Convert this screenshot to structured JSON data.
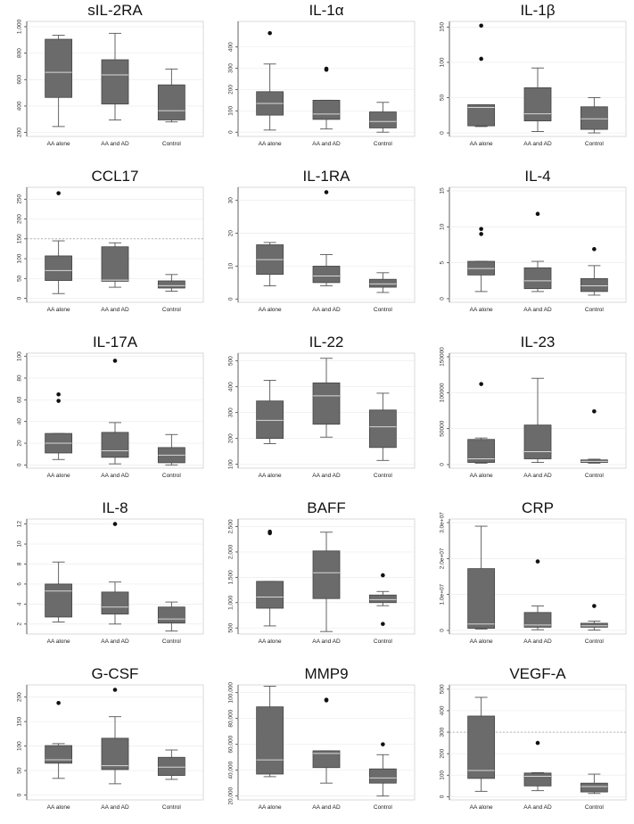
{
  "chart_data": [
    {
      "type": "box",
      "title": "sIL-2RA",
      "categories": [
        "AA alone",
        "AA and AD",
        "Control"
      ],
      "yticks": [
        "200",
        "400",
        "600",
        "800",
        "1,000"
      ],
      "ylim": [
        170,
        1040
      ],
      "boxes": [
        {
          "min": 245,
          "q1": 465,
          "median": 655,
          "q3": 905,
          "max": 935,
          "outliers": []
        },
        {
          "min": 295,
          "q1": 415,
          "median": 635,
          "q3": 750,
          "max": 950,
          "outliers": []
        },
        {
          "min": 280,
          "q1": 295,
          "median": 365,
          "q3": 560,
          "max": 680,
          "outliers": []
        }
      ],
      "refline": null
    },
    {
      "type": "box",
      "title": "IL-1α",
      "categories": [
        "AA alone",
        "AA and AD",
        "Control"
      ],
      "yticks": [
        "0",
        "100",
        "200",
        "300",
        "400"
      ],
      "ylim": [
        -20,
        520
      ],
      "boxes": [
        {
          "min": 10,
          "q1": 80,
          "median": 135,
          "q3": 190,
          "max": 320,
          "outliers": [
            465
          ]
        },
        {
          "min": 15,
          "q1": 60,
          "median": 85,
          "q3": 150,
          "max": 150,
          "outliers": [
            293,
            298
          ]
        },
        {
          "min": 0,
          "q1": 20,
          "median": 50,
          "q3": 95,
          "max": 140,
          "outliers": []
        }
      ],
      "refline": null
    },
    {
      "type": "box",
      "title": "IL-1β",
      "categories": [
        "AA alone",
        "AA and AD",
        "Control"
      ],
      "yticks": [
        "0",
        "50",
        "100",
        "150"
      ],
      "ylim": [
        -5,
        158
      ],
      "boxes": [
        {
          "min": 9,
          "q1": 10,
          "median": 36,
          "q3": 40,
          "max": 40,
          "outliers": [
            105,
            152
          ]
        },
        {
          "min": 2,
          "q1": 17,
          "median": 27,
          "q3": 64,
          "max": 92,
          "outliers": []
        },
        {
          "min": 0,
          "q1": 5,
          "median": 20,
          "q3": 37,
          "max": 50,
          "outliers": []
        }
      ],
      "refline": null
    },
    {
      "type": "box",
      "title": "CCL17",
      "categories": [
        "AA alone",
        "AA and AD",
        "Control"
      ],
      "yticks": [
        "0",
        "50",
        "100",
        "150",
        "200",
        "250"
      ],
      "ylim": [
        -10,
        280
      ],
      "boxes": [
        {
          "min": 12,
          "q1": 45,
          "median": 70,
          "q3": 107,
          "max": 145,
          "outliers": [
            265
          ]
        },
        {
          "min": 28,
          "q1": 43,
          "median": 46,
          "q3": 130,
          "max": 140,
          "outliers": []
        },
        {
          "min": 18,
          "q1": 26,
          "median": 32,
          "q3": 44,
          "max": 60,
          "outliers": []
        }
      ],
      "refline": 150
    },
    {
      "type": "box",
      "title": "IL-1RA",
      "categories": [
        "AA alone",
        "AA and AD",
        "Control"
      ],
      "yticks": [
        "0",
        "10",
        "20",
        "30"
      ],
      "ylim": [
        -1,
        34
      ],
      "boxes": [
        {
          "min": 4,
          "q1": 7.5,
          "median": 12,
          "q3": 16.5,
          "max": 17.2,
          "outliers": []
        },
        {
          "min": 4,
          "q1": 5,
          "median": 7,
          "q3": 10,
          "max": 13.5,
          "outliers": [
            32.5
          ]
        },
        {
          "min": 2,
          "q1": 3.6,
          "median": 4.6,
          "q3": 6,
          "max": 8,
          "outliers": []
        }
      ],
      "refline": null
    },
    {
      "type": "box",
      "title": "IL-4",
      "categories": [
        "AA alone",
        "AA and AD",
        "Control"
      ],
      "yticks": [
        "0",
        "5",
        "10",
        "15"
      ],
      "ylim": [
        -0.5,
        15.5
      ],
      "boxes": [
        {
          "min": 1,
          "q1": 3.3,
          "median": 4.2,
          "q3": 5.2,
          "max": 5.2,
          "outliers": [
            9,
            9.7
          ]
        },
        {
          "min": 1,
          "q1": 1.4,
          "median": 2.5,
          "q3": 4.3,
          "max": 5.2,
          "outliers": [
            11.8
          ]
        },
        {
          "min": 0.5,
          "q1": 1,
          "median": 1.8,
          "q3": 2.8,
          "max": 4.6,
          "outliers": [
            6.9
          ]
        }
      ],
      "refline": null
    },
    {
      "type": "box",
      "title": "IL-17A",
      "categories": [
        "AA alone",
        "AA and AD",
        "Control"
      ],
      "yticks": [
        "0",
        "20",
        "40",
        "60",
        "80",
        "100"
      ],
      "ylim": [
        -3,
        103
      ],
      "boxes": [
        {
          "min": 5,
          "q1": 11,
          "median": 20,
          "q3": 29,
          "max": 29,
          "outliers": [
            59,
            65
          ]
        },
        {
          "min": 1,
          "q1": 7,
          "median": 13,
          "q3": 30,
          "max": 39,
          "outliers": [
            96
          ]
        },
        {
          "min": 0,
          "q1": 2,
          "median": 9,
          "q3": 16,
          "max": 28,
          "outliers": []
        }
      ],
      "refline": null
    },
    {
      "type": "box",
      "title": "IL-22",
      "categories": [
        "AA alone",
        "AA and AD",
        "Control"
      ],
      "yticks": [
        "100",
        "200",
        "300",
        "400",
        "500"
      ],
      "ylim": [
        85,
        530
      ],
      "boxes": [
        {
          "min": 180,
          "q1": 200,
          "median": 270,
          "q3": 345,
          "max": 425,
          "outliers": []
        },
        {
          "min": 205,
          "q1": 255,
          "median": 365,
          "q3": 415,
          "max": 510,
          "outliers": []
        },
        {
          "min": 115,
          "q1": 165,
          "median": 245,
          "q3": 310,
          "max": 375,
          "outliers": []
        }
      ],
      "refline": null
    },
    {
      "type": "box",
      "title": "IL-23",
      "categories": [
        "AA alone",
        "AA and AD",
        "Control"
      ],
      "yticks": [
        "0",
        "50000",
        "100000",
        "150000"
      ],
      "ylim": [
        -5000,
        155000
      ],
      "boxes": [
        {
          "min": 2000,
          "q1": 3000,
          "median": 8000,
          "q3": 35000,
          "max": 37000,
          "outliers": [
            112000
          ]
        },
        {
          "min": 3000,
          "q1": 8000,
          "median": 18000,
          "q3": 55000,
          "max": 120000,
          "outliers": []
        },
        {
          "min": 2000,
          "q1": 3000,
          "median": 4500,
          "q3": 6500,
          "max": 7500,
          "outliers": [
            74000
          ]
        }
      ],
      "refline": null
    },
    {
      "type": "box",
      "title": "IL-8",
      "categories": [
        "AA alone",
        "AA and AD",
        "Control"
      ],
      "yticks": [
        "2",
        "4",
        "6",
        "8",
        "10",
        "12"
      ],
      "ylim": [
        1,
        12.5
      ],
      "boxes": [
        {
          "min": 2.2,
          "q1": 2.7,
          "median": 5.3,
          "q3": 6,
          "max": 8.2,
          "outliers": []
        },
        {
          "min": 2,
          "q1": 3,
          "median": 3.7,
          "q3": 5.2,
          "max": 6.2,
          "outliers": [
            12
          ]
        },
        {
          "min": 1.3,
          "q1": 2.1,
          "median": 2.5,
          "q3": 3.7,
          "max": 4.2,
          "outliers": []
        }
      ],
      "refline": null
    },
    {
      "type": "box",
      "title": "BAFF",
      "categories": [
        "AA alone",
        "AA and AD",
        "Control"
      ],
      "yticks": [
        "500",
        "1,000",
        "1,500",
        "2,000",
        "2,500"
      ],
      "ylim": [
        380,
        2650
      ],
      "boxes": [
        {
          "min": 540,
          "q1": 890,
          "median": 1110,
          "q3": 1420,
          "max": 1420,
          "outliers": [
            2370,
            2400
          ]
        },
        {
          "min": 430,
          "q1": 1080,
          "median": 1590,
          "q3": 2020,
          "max": 2390,
          "outliers": []
        },
        {
          "min": 940,
          "q1": 1000,
          "median": 1060,
          "q3": 1150,
          "max": 1220,
          "outliers": [
            1540,
            580
          ]
        }
      ],
      "refline": null
    },
    {
      "type": "box",
      "title": "CRP",
      "categories": [
        "AA alone",
        "AA and AD",
        "Control"
      ],
      "yticks": [
        "0",
        "1.0e+07",
        "2.0e+07",
        "3.0e+07"
      ],
      "ylim": [
        -1000000,
        31000000
      ],
      "boxes": [
        {
          "min": 400000,
          "q1": 600000,
          "median": 1800000,
          "q3": 17200000,
          "max": 29000000,
          "outliers": []
        },
        {
          "min": 200000,
          "q1": 900000,
          "median": 1500000,
          "q3": 5000000,
          "max": 6800000,
          "outliers": [
            19200000
          ]
        },
        {
          "min": 100000,
          "q1": 900000,
          "median": 1300000,
          "q3": 2000000,
          "max": 2600000,
          "outliers": [
            6800000
          ]
        }
      ],
      "refline": null
    },
    {
      "type": "box",
      "title": "G-CSF",
      "categories": [
        "AA alone",
        "AA and AD",
        "Control"
      ],
      "yticks": [
        "0",
        "50",
        "100",
        "150",
        "200"
      ],
      "ylim": [
        -10,
        225
      ],
      "boxes": [
        {
          "min": 34,
          "q1": 65,
          "median": 72,
          "q3": 101,
          "max": 105,
          "outliers": [
            188
          ]
        },
        {
          "min": 23,
          "q1": 52,
          "median": 60,
          "q3": 116,
          "max": 160,
          "outliers": [
            215
          ]
        },
        {
          "min": 32,
          "q1": 40,
          "median": 57,
          "q3": 77,
          "max": 92,
          "outliers": []
        }
      ],
      "refline": null
    },
    {
      "type": "box",
      "title": "MMP9",
      "categories": [
        "AA alone",
        "AA and AD",
        "Control"
      ],
      "yticks": [
        "20,000",
        "40,000",
        "60,000",
        "80,000",
        "100,000"
      ],
      "ylim": [
        17000,
        106000
      ],
      "boxes": [
        {
          "min": 35000,
          "q1": 37000,
          "median": 48000,
          "q3": 89000,
          "max": 105000,
          "outliers": []
        },
        {
          "min": 30000,
          "q1": 42000,
          "median": 53000,
          "q3": 55000,
          "max": 55000,
          "outliers": [
            94000,
            94500
          ]
        },
        {
          "min": 20000,
          "q1": 30000,
          "median": 34000,
          "q3": 41000,
          "max": 52000,
          "outliers": [
            60000
          ]
        }
      ],
      "refline": null
    },
    {
      "type": "box",
      "title": "VEGF-A",
      "categories": [
        "AA alone",
        "AA and AD",
        "Control"
      ],
      "yticks": [
        "0",
        "100",
        "200",
        "300",
        "400",
        "500"
      ],
      "ylim": [
        -15,
        520
      ],
      "boxes": [
        {
          "min": 25,
          "q1": 85,
          "median": 122,
          "q3": 375,
          "max": 462,
          "outliers": []
        },
        {
          "min": 28,
          "q1": 50,
          "median": 95,
          "q3": 110,
          "max": 112,
          "outliers": [
            250
          ]
        },
        {
          "min": 15,
          "q1": 22,
          "median": 47,
          "q3": 63,
          "max": 105,
          "outliers": []
        }
      ],
      "refline": 300
    }
  ]
}
